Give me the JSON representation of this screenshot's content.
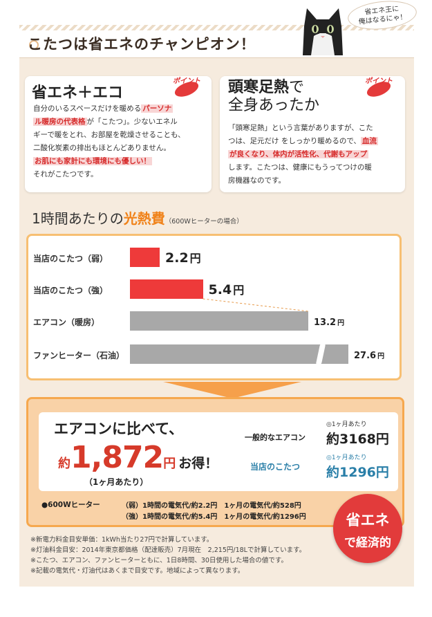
{
  "header": {
    "title": "こたつは省エネのチャンピオン！",
    "cat_speech_line1": "省エネ王に",
    "cat_speech_line2": "俺はなるにゃ！"
  },
  "card_left": {
    "heading": "省エネ＋エコ",
    "badge": "ポイント",
    "line1_a": "自分のいるスペースだけを暖める",
    "line1_hl": "パーソナ",
    "line2_hl": "ル暖房の代表格",
    "line2_b": "が「こたつ」。少ないエネル",
    "line3": "ギーで暖をとれ、お部屋を乾燥させることも、",
    "line4": "二酸化炭素の排出もほとんどありません。",
    "line5_hl": "お肌にも家計にも環境にも優しい！",
    "line6": "それがこたつです。"
  },
  "card_right": {
    "heading_a": "頭寒足熱",
    "heading_b": "で",
    "heading_line2": "全身あったか",
    "badge": "ポイント",
    "line1": "「頭寒足熱」という言葉がありますが、こた",
    "line2_a": "つは、足元だけ をしっかり暖めるので、",
    "line2_hl": "血流",
    "line3_hl": "が良くなり、体内が活性化、代謝もアップ",
    "line4": "します。こたつは、健康にもうってつけの暖",
    "line5": "房機器なのです。"
  },
  "chart_heading": {
    "prefix": "1時間あたりの",
    "accent": "光熱費",
    "note": "（600Wヒーターの場合）"
  },
  "chart_data": {
    "type": "bar",
    "title": "1時間あたりの光熱費",
    "unit": "円",
    "categories": [
      "当店のこたつ（弱）",
      "当店のこたつ（強）",
      "エアコン（暖房）",
      "ファンヒーター（石油）"
    ],
    "values": [
      2.2,
      5.4,
      13.2,
      27.6
    ],
    "value_labels": [
      "2.2",
      "5.4",
      "13.2",
      "27.6"
    ],
    "colors": [
      "#ee3a3a",
      "#ee3a3a",
      "#a8a8a8",
      "#a8a8a8"
    ],
    "axis_break_on_last_bar": true
  },
  "summary": {
    "compare_title": "エアコンに比べて、",
    "prefix": "約",
    "amount": "1,872",
    "unit": "円",
    "suffix": "お得！",
    "period": "（1ヶ月あたり）",
    "row1_label": "一般的なエアコン",
    "row1_period": "◎1ヶ月あたり",
    "row1_value": "約3168円",
    "row2_label": "当店のこたつ",
    "row2_period": "◎1ヶ月あたり",
    "row2_value": "約1296円",
    "heater_label": "●600Wヒーター",
    "heater_weak": "（弱）1時間の電気代/約2.2円　1ヶ月の電気代/約528円",
    "heater_strong": "（強）1時間の電気代/約5.4円　1ヶ月の電気代/約1296円"
  },
  "seal": {
    "line1": "省エネ",
    "line2": "で経済的"
  },
  "footnotes": [
    "※新電力料金目安単価：1kWh当たり27円で計算しています。",
    "※灯油料金目安：2014年東京都価格（配達販売）7月現在　2,215円/18Lで計算しています。",
    "※こたつ、エアコン、ファンヒーターともに、1日8時間、30日使用した場合の値です。",
    "※記載の電気代・灯油代はあくまで目安です。地域によって異なります。"
  ]
}
